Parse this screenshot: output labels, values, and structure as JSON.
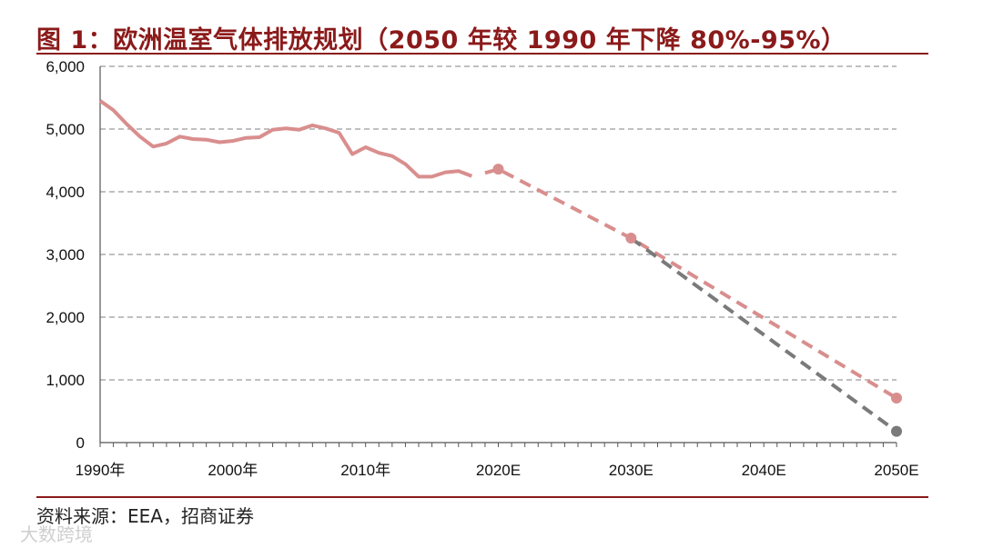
{
  "header": {
    "title": "图 1：欧洲温室气体排放规划（2050 年较 1990 年下降 80%-95%）"
  },
  "footer": {
    "source": "资料来源：EEA，招商证券",
    "watermark": "大数跨境"
  },
  "colors": {
    "accent": "#8b1a1a",
    "series_pink": "#d98e8e",
    "series_gray": "#7a7a7a",
    "grid": "#9a9a9a"
  },
  "chart_data": {
    "type": "line",
    "x_ticks": [
      "1990年",
      "2000年",
      "2010年",
      "2020E",
      "2030E",
      "2040E",
      "2050E"
    ],
    "y_ticks": [
      "0",
      "1,000",
      "2,000",
      "3,000",
      "4,000",
      "5,000",
      "6,000"
    ],
    "ylim": [
      0,
      6000
    ],
    "xlim": [
      1990,
      2050
    ],
    "grid": true,
    "series": [
      {
        "style": "solid",
        "color": "#d98e8e",
        "x": [
          1990,
          1991,
          1992,
          1993,
          1994,
          1995,
          1996,
          1997,
          1998,
          1999,
          2000,
          2001,
          2002,
          2003,
          2004,
          2005,
          2006,
          2007,
          2008,
          2009,
          2010,
          2011,
          2012,
          2013,
          2014,
          2015,
          2016,
          2017,
          2018
        ],
        "y": [
          5450,
          5300,
          5080,
          4880,
          4720,
          4770,
          4880,
          4840,
          4830,
          4790,
          4810,
          4860,
          4870,
          4990,
          5010,
          4990,
          5060,
          5010,
          4940,
          4600,
          4710,
          4620,
          4570,
          4440,
          4240,
          4240,
          4310,
          4330,
          4250
        ]
      },
      {
        "style": "dashed",
        "color": "#d98e8e",
        "x": [
          2019,
          2020,
          2030,
          2050
        ],
        "y": [
          4300,
          4360,
          3260,
          710
        ],
        "markers": [
          2020,
          2030,
          2050
        ]
      },
      {
        "style": "dashed",
        "color": "#7a7a7a",
        "x": [
          2030,
          2050
        ],
        "y": [
          3260,
          180
        ],
        "markers": [
          2050
        ]
      }
    ]
  }
}
